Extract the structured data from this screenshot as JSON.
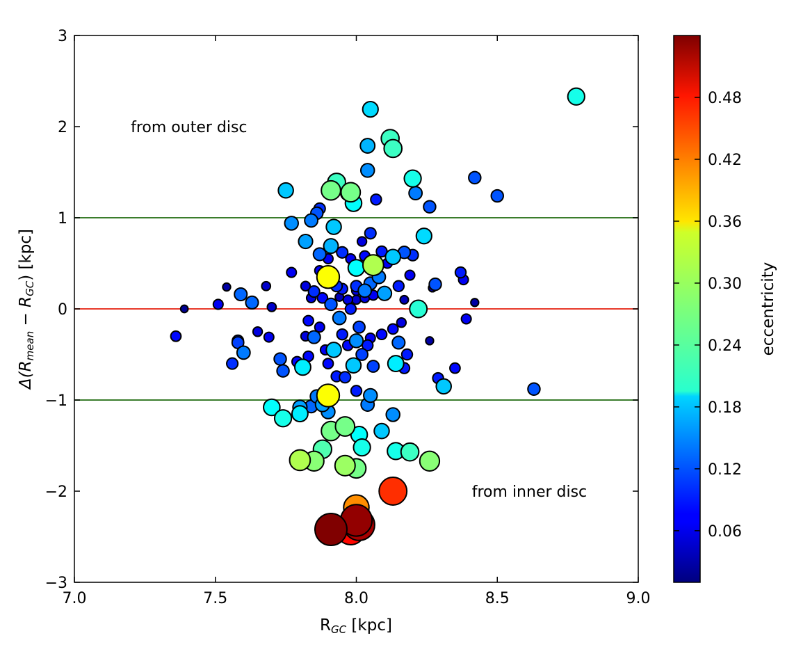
{
  "chart_data": {
    "type": "scatter",
    "title": "",
    "xlabel": "R",
    "xlabel_sub": "GC",
    "xlabel_unit": " [kpc]",
    "ylabel": "Δ(R",
    "ylabel_sub1": "mean",
    "ylabel_mid": " − R",
    "ylabel_sub2": "GC",
    "ylabel_end": ") [kpc]",
    "xlim": [
      7.0,
      9.0
    ],
    "ylim": [
      -3,
      3
    ],
    "xticks": [
      "7.0",
      "7.5",
      "8.0",
      "8.5",
      "9.0"
    ],
    "yticks": [
      "−3",
      "−2",
      "−1",
      "0",
      "1",
      "2",
      "3"
    ],
    "hlines": [
      {
        "y": 1,
        "color": "#3a7d2c"
      },
      {
        "y": 0,
        "color": "#e8392a"
      },
      {
        "y": -1,
        "color": "#3a7d2c"
      }
    ],
    "annotations": [
      {
        "text": "from outer disc",
        "x": 7.2,
        "y": 2.0
      },
      {
        "text": "from inner disc",
        "x": 8.41,
        "y": -2.0
      }
    ],
    "colorbar": {
      "label": "eccentricity",
      "range": [
        0.01,
        0.54
      ],
      "ticks": [
        "0.06",
        "0.12",
        "0.18",
        "0.24",
        "0.30",
        "0.36",
        "0.42",
        "0.48"
      ],
      "tick_values": [
        0.06,
        0.12,
        0.18,
        0.24,
        0.3,
        0.36,
        0.42,
        0.48
      ],
      "colormap": "jet"
    },
    "points": [
      [
        8.78,
        2.33,
        0.22
      ],
      [
        8.05,
        2.19,
        0.19
      ],
      [
        8.12,
        1.87,
        0.24
      ],
      [
        8.13,
        1.76,
        0.24
      ],
      [
        8.04,
        1.79,
        0.17
      ],
      [
        8.04,
        1.52,
        0.15
      ],
      [
        8.2,
        1.43,
        0.22
      ],
      [
        8.21,
        1.27,
        0.14
      ],
      [
        8.26,
        1.12,
        0.12
      ],
      [
        8.42,
        1.44,
        0.12
      ],
      [
        8.5,
        1.24,
        0.12
      ],
      [
        8.07,
        1.2,
        0.09
      ],
      [
        7.75,
        1.3,
        0.18
      ],
      [
        7.91,
        1.3,
        0.27
      ],
      [
        7.93,
        1.39,
        0.24
      ],
      [
        7.98,
        1.28,
        0.27
      ],
      [
        7.97,
        1.27,
        0.17
      ],
      [
        7.99,
        1.16,
        0.21
      ],
      [
        7.87,
        1.1,
        0.1
      ],
      [
        7.86,
        1.05,
        0.12
      ],
      [
        7.84,
        0.97,
        0.14
      ],
      [
        7.77,
        0.94,
        0.15
      ],
      [
        7.92,
        0.9,
        0.18
      ],
      [
        8.05,
        0.83,
        0.1
      ],
      [
        8.24,
        0.8,
        0.19
      ],
      [
        7.82,
        0.74,
        0.16
      ],
      [
        7.91,
        0.69,
        0.17
      ],
      [
        8.02,
        0.74,
        0.06
      ],
      [
        8.09,
        0.63,
        0.09
      ],
      [
        8.13,
        0.57,
        0.18
      ],
      [
        8.17,
        0.62,
        0.12
      ],
      [
        8.2,
        0.59,
        0.1
      ],
      [
        8.03,
        0.58,
        0.08
      ],
      [
        7.87,
        0.6,
        0.13
      ],
      [
        7.9,
        0.55,
        0.07
      ],
      [
        7.95,
        0.62,
        0.1
      ],
      [
        7.98,
        0.55,
        0.07
      ],
      [
        8.06,
        0.48,
        0.3
      ],
      [
        8.11,
        0.5,
        0.07
      ],
      [
        8.0,
        0.45,
        0.21
      ],
      [
        8.07,
        0.42,
        0.08
      ],
      [
        7.77,
        0.4,
        0.07
      ],
      [
        7.87,
        0.42,
        0.07
      ],
      [
        7.9,
        0.35,
        0.34
      ],
      [
        8.08,
        0.35,
        0.14
      ],
      [
        8.19,
        0.37,
        0.07
      ],
      [
        8.37,
        0.4,
        0.09
      ],
      [
        8.38,
        0.32,
        0.07
      ],
      [
        8.28,
        0.27,
        0.12
      ],
      [
        8.27,
        0.23,
        0.03
      ],
      [
        7.93,
        0.25,
        0.1
      ],
      [
        7.95,
        0.22,
        0.09
      ],
      [
        8.0,
        0.25,
        0.1
      ],
      [
        8.03,
        0.2,
        0.14
      ],
      [
        8.05,
        0.28,
        0.13
      ],
      [
        8.15,
        0.25,
        0.09
      ],
      [
        8.0,
        0.2,
        0.06
      ],
      [
        8.1,
        0.17,
        0.16
      ],
      [
        8.17,
        0.1,
        0.04
      ],
      [
        7.82,
        0.25,
        0.06
      ],
      [
        7.85,
        0.19,
        0.1
      ],
      [
        7.84,
        0.12,
        0.06
      ],
      [
        7.88,
        0.12,
        0.08
      ],
      [
        7.91,
        0.05,
        0.12
      ],
      [
        7.94,
        0.13,
        0.04
      ],
      [
        7.97,
        0.1,
        0.06
      ],
      [
        8.0,
        0.1,
        0.05
      ],
      [
        8.03,
        0.12,
        0.06
      ],
      [
        8.06,
        0.15,
        0.07
      ],
      [
        7.98,
        0.0,
        0.09
      ],
      [
        8.22,
        0.0,
        0.23
      ],
      [
        7.54,
        0.24,
        0.03
      ],
      [
        7.59,
        0.16,
        0.13
      ],
      [
        7.63,
        0.07,
        0.13
      ],
      [
        7.68,
        0.25,
        0.05
      ],
      [
        7.7,
        0.02,
        0.05
      ],
      [
        7.51,
        0.05,
        0.07
      ],
      [
        7.39,
        0.0,
        0.02
      ],
      [
        8.42,
        0.07,
        0.03
      ],
      [
        7.36,
        -0.3,
        0.08
      ],
      [
        7.58,
        -0.35,
        0.1
      ],
      [
        7.58,
        -0.37,
        0.11
      ],
      [
        7.6,
        -0.48,
        0.14
      ],
      [
        7.56,
        -0.6,
        0.1
      ],
      [
        7.65,
        -0.25,
        0.06
      ],
      [
        7.69,
        -0.31,
        0.07
      ],
      [
        7.73,
        -0.55,
        0.12
      ],
      [
        7.74,
        -0.68,
        0.12
      ],
      [
        7.79,
        -0.58,
        0.08
      ],
      [
        7.81,
        -0.64,
        0.2
      ],
      [
        7.83,
        -0.52,
        0.08
      ],
      [
        7.82,
        -0.3,
        0.06
      ],
      [
        7.83,
        -0.13,
        0.08
      ],
      [
        7.85,
        -0.31,
        0.13
      ],
      [
        7.87,
        -0.2,
        0.07
      ],
      [
        7.89,
        -0.45,
        0.07
      ],
      [
        7.9,
        -0.6,
        0.08
      ],
      [
        7.92,
        -0.45,
        0.18
      ],
      [
        7.94,
        -0.1,
        0.14
      ],
      [
        7.95,
        -0.28,
        0.09
      ],
      [
        7.97,
        -0.4,
        0.08
      ],
      [
        7.99,
        -0.62,
        0.18
      ],
      [
        8.0,
        -0.35,
        0.15
      ],
      [
        8.01,
        -0.2,
        0.11
      ],
      [
        8.02,
        -0.5,
        0.11
      ],
      [
        8.04,
        -0.4,
        0.09
      ],
      [
        8.05,
        -0.32,
        0.07
      ],
      [
        8.06,
        -0.63,
        0.11
      ],
      [
        8.09,
        -0.28,
        0.08
      ],
      [
        8.13,
        -0.22,
        0.08
      ],
      [
        8.15,
        -0.37,
        0.13
      ],
      [
        8.14,
        -0.6,
        0.2
      ],
      [
        8.17,
        -0.65,
        0.09
      ],
      [
        8.16,
        -0.15,
        0.06
      ],
      [
        8.18,
        -0.5,
        0.09
      ],
      [
        8.26,
        -0.35,
        0.03
      ],
      [
        8.29,
        -0.76,
        0.09
      ],
      [
        8.31,
        -0.85,
        0.18
      ],
      [
        8.35,
        -0.65,
        0.08
      ],
      [
        8.39,
        -0.11,
        0.07
      ],
      [
        8.63,
        -0.88,
        0.12
      ],
      [
        7.9,
        -0.95,
        0.34
      ],
      [
        7.93,
        -0.74,
        0.09
      ],
      [
        7.96,
        -0.75,
        0.1
      ],
      [
        8.0,
        -0.9,
        0.09
      ],
      [
        8.05,
        -0.95,
        0.15
      ],
      [
        8.04,
        -1.05,
        0.14
      ],
      [
        7.86,
        -0.96,
        0.14
      ],
      [
        7.88,
        -1.05,
        0.16
      ],
      [
        7.9,
        -1.13,
        0.15
      ],
      [
        7.84,
        -1.07,
        0.13
      ],
      [
        7.8,
        -1.08,
        0.16
      ],
      [
        7.8,
        -1.15,
        0.2
      ],
      [
        7.7,
        -1.08,
        0.21
      ],
      [
        7.74,
        -1.2,
        0.22
      ],
      [
        7.91,
        -1.34,
        0.27
      ],
      [
        7.96,
        -1.29,
        0.27
      ],
      [
        8.01,
        -1.38,
        0.21
      ],
      [
        8.02,
        -1.52,
        0.22
      ],
      [
        8.09,
        -1.34,
        0.18
      ],
      [
        8.13,
        -1.16,
        0.15
      ],
      [
        8.14,
        -1.56,
        0.22
      ],
      [
        8.19,
        -1.57,
        0.24
      ],
      [
        8.26,
        -1.67,
        0.28
      ],
      [
        7.88,
        -1.54,
        0.25
      ],
      [
        7.85,
        -1.67,
        0.28
      ],
      [
        7.8,
        -1.66,
        0.3
      ],
      [
        7.96,
        -1.72,
        0.29
      ],
      [
        8.0,
        -1.75,
        0.27
      ],
      [
        8.13,
        -2.0,
        0.45
      ],
      [
        8.0,
        -2.18,
        0.4
      ],
      [
        8.0,
        -2.32,
        0.53
      ],
      [
        8.01,
        -2.37,
        0.52
      ],
      [
        7.91,
        -2.42,
        0.54
      ],
      [
        7.98,
        -2.43,
        0.47
      ]
    ]
  }
}
